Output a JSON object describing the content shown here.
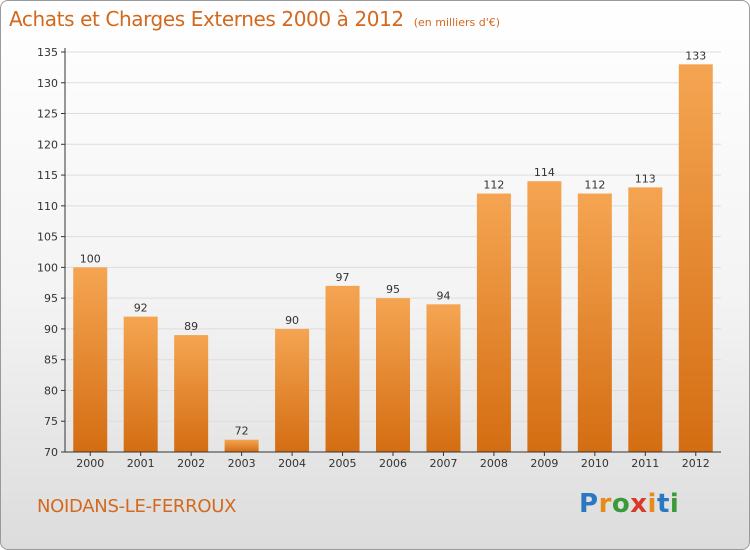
{
  "header": {
    "title": "Achats et Charges Externes 2000 à 2012",
    "subtitle": "(en milliers d'€)"
  },
  "footer": {
    "commune": "NOIDANS-LE-FERROUX",
    "logo_text": "Proxiti"
  },
  "colors": {
    "title": "#d2691e",
    "bar_top": "#f5a552",
    "bar_bottom": "#d46d12",
    "grid": "#dddddd",
    "axis": "#333333",
    "logo_letters": [
      "#2a78c2",
      "#e88a1a",
      "#3a9a3a",
      "#d83a2a",
      "#e88a1a",
      "#2a78c2",
      "#3a9a3a"
    ]
  },
  "chart_data": {
    "type": "bar",
    "categories": [
      "2000",
      "2001",
      "2002",
      "2003",
      "2004",
      "2005",
      "2006",
      "2007",
      "2008",
      "2009",
      "2010",
      "2011",
      "2012"
    ],
    "values": [
      100,
      92,
      89,
      72,
      90,
      97,
      95,
      94,
      112,
      114,
      112,
      113,
      133
    ],
    "data_labels": [
      "100",
      "92",
      "89",
      "72",
      "90",
      "97",
      "95",
      "94",
      "112",
      "114",
      "112",
      "113",
      "133"
    ],
    "title": "Achats et Charges Externes 2000 à 2012",
    "subtitle": "(en milliers d'€)",
    "xlabel": "",
    "ylabel": "",
    "ylim": [
      70,
      135
    ],
    "yticks": [
      70,
      75,
      80,
      85,
      90,
      95,
      100,
      105,
      110,
      115,
      120,
      125,
      130,
      135
    ],
    "grid": true,
    "legend": "none"
  }
}
